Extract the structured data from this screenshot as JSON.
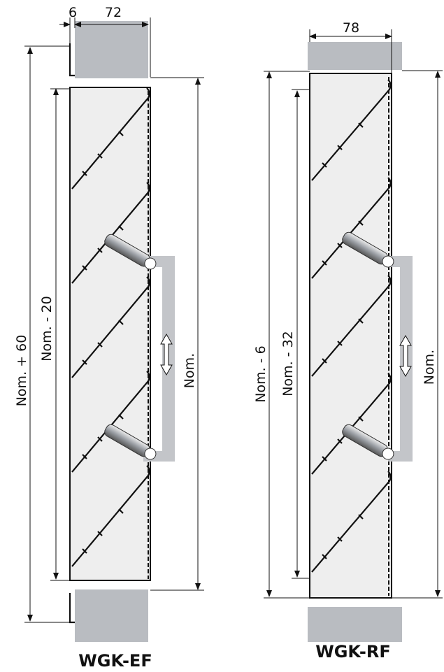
{
  "left": {
    "dims": {
      "frame_width": 6,
      "width": 72,
      "outer_height": "Nom. + 60",
      "inner_height": "Nom. - 20",
      "opening": "Nom."
    },
    "label": "WGK-EF"
  },
  "right": {
    "dims": {
      "width": 78,
      "outer_height": "Nom. - 6",
      "inner_height": "Nom. - 32",
      "opening": "Nom."
    },
    "label": "WGK-RF"
  }
}
